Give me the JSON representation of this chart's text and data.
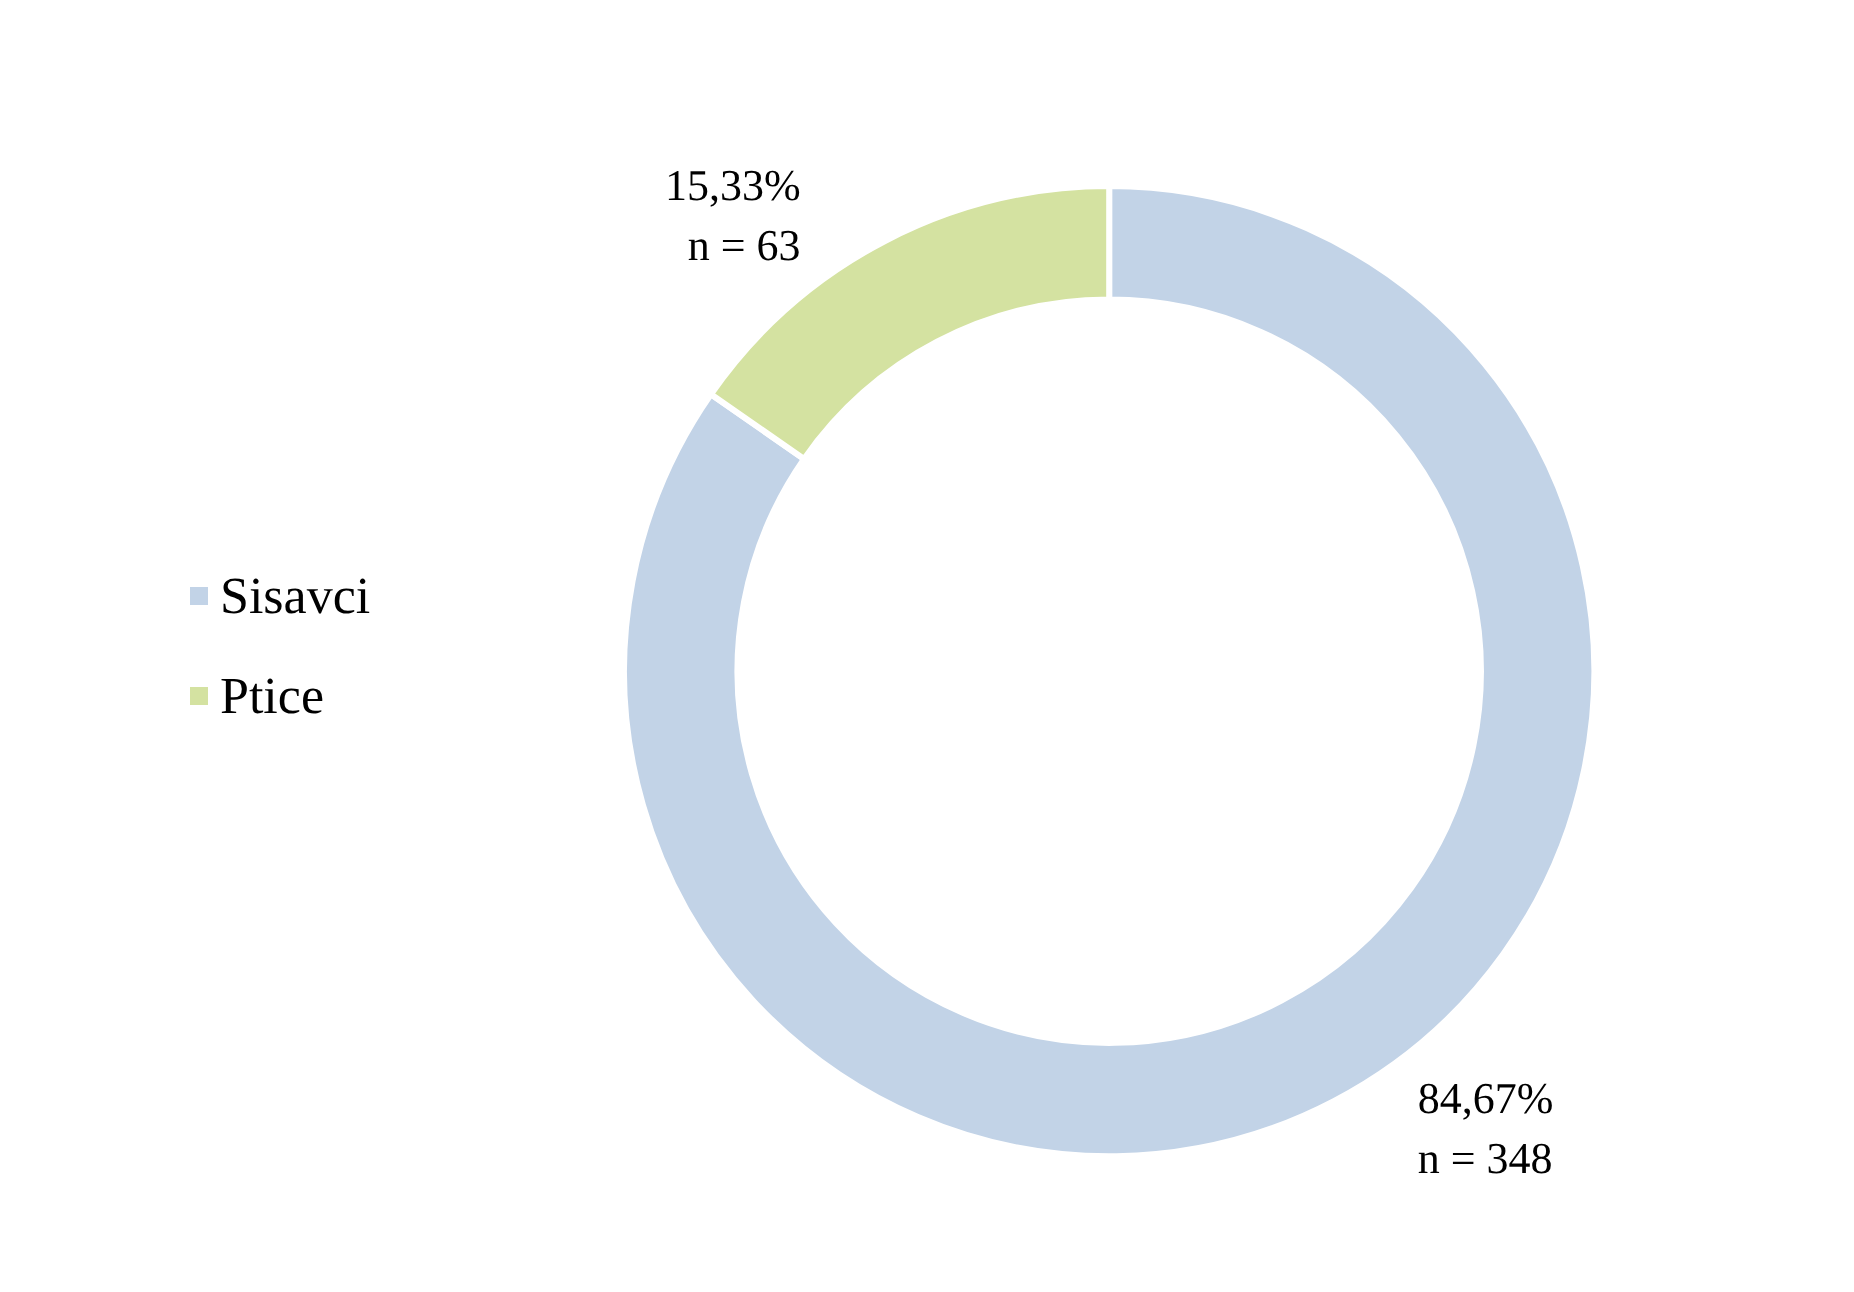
{
  "chart_data": {
    "type": "donut",
    "categories": [
      "Sisavci",
      "Ptice"
    ],
    "values": [
      348,
      63
    ],
    "colors": [
      "#c2d3e7",
      "#d4e2a1"
    ],
    "value_labels": [
      "84,67%\nn = 348",
      "15,33%\nn = 63"
    ],
    "legend": "left"
  }
}
